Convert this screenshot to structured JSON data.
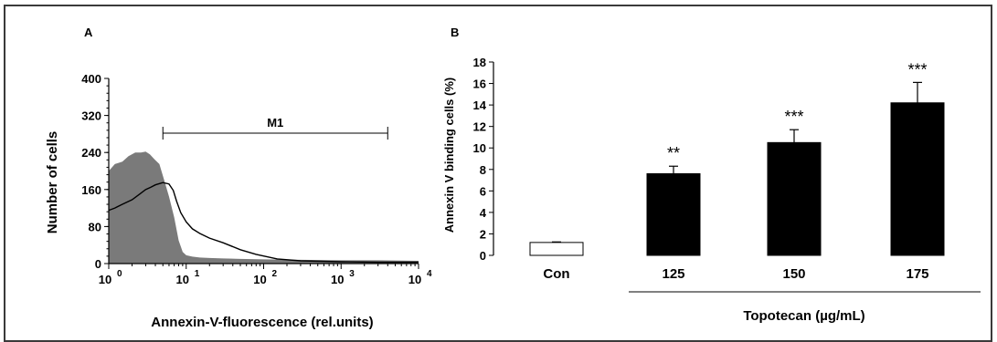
{
  "chart_data": [
    {
      "panel": "A",
      "type": "area",
      "xlabel": "Annexin-V-fluorescence (rel.units)",
      "ylabel": "Number of cells",
      "xscale": "log",
      "xlim": [
        1,
        10000
      ],
      "ylim": [
        0,
        400
      ],
      "y_ticks": [
        "0",
        "80",
        "160",
        "240",
        "320",
        "400"
      ],
      "x_ticks": [
        {
          "base": "10",
          "exp": "0",
          "value": 1
        },
        {
          "base": "10",
          "exp": "1",
          "value": 10
        },
        {
          "base": "10",
          "exp": "2",
          "value": 100
        },
        {
          "base": "10",
          "exp": "3",
          "value": 1000
        },
        {
          "base": "10",
          "exp": "4",
          "value": 10000
        }
      ],
      "gate": {
        "label": "M1",
        "x_start": 5,
        "x_end": 4000
      },
      "series": [
        {
          "style": "filled",
          "color": "#7a7a7a",
          "x": [
            1,
            1.2,
            1.5,
            1.8,
            2.2,
            2.6,
            3.0,
            3.4,
            3.9,
            4.5,
            5.2,
            6.0,
            7.0,
            8.0,
            9.0,
            10,
            12,
            15,
            20,
            30,
            50,
            100,
            300,
            1000,
            3000,
            10000
          ],
          "y": [
            200,
            215,
            220,
            232,
            240,
            240,
            242,
            236,
            225,
            215,
            180,
            145,
            100,
            50,
            25,
            18,
            15,
            13,
            12,
            11,
            10,
            9,
            8,
            7,
            7,
            6
          ]
        },
        {
          "style": "line",
          "color": "#000000",
          "x": [
            1,
            1.2,
            1.5,
            2.0,
            2.5,
            3.0,
            3.5,
            4.0,
            5.0,
            6.0,
            6.8,
            7.5,
            8.5,
            10,
            12,
            15,
            20,
            30,
            50,
            80,
            150,
            300,
            1000,
            3000,
            10000
          ],
          "y": [
            115,
            120,
            128,
            138,
            150,
            160,
            165,
            170,
            175,
            172,
            158,
            135,
            110,
            90,
            75,
            65,
            55,
            45,
            30,
            20,
            10,
            6,
            4,
            3,
            3
          ]
        }
      ]
    },
    {
      "panel": "B",
      "type": "bar",
      "ylabel": "Annexin V binding cells (%)",
      "xlabel": "Topotecan (µg/mL)",
      "ylim": [
        0,
        18
      ],
      "y_ticks": [
        "0",
        "2",
        "4",
        "6",
        "8",
        "10",
        "12",
        "14",
        "16",
        "18"
      ],
      "categories": [
        "Con",
        "125",
        "150",
        "175"
      ],
      "values": [
        1.2,
        7.6,
        10.5,
        14.2
      ],
      "errors": [
        0.05,
        0.7,
        1.2,
        1.9
      ],
      "significance": [
        "",
        "**",
        "***",
        "***"
      ],
      "bar_colors": [
        "#ffffff",
        "#000000",
        "#000000",
        "#000000"
      ],
      "treated_group_indices": [
        1,
        2,
        3
      ]
    }
  ]
}
